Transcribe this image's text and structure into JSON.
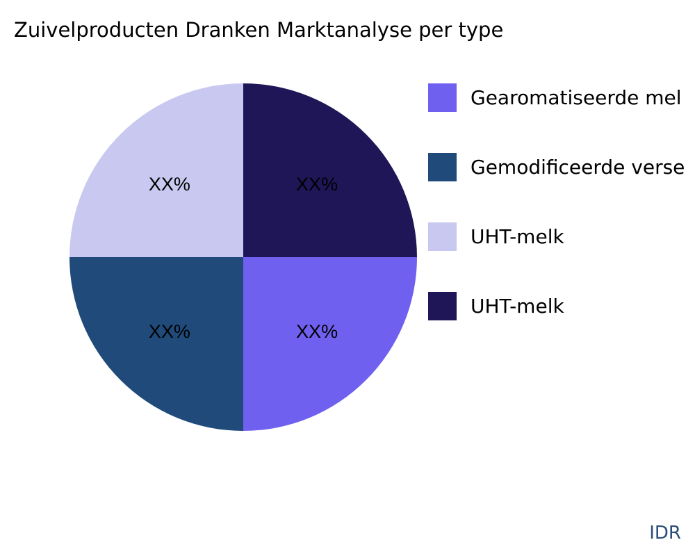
{
  "chart_data": {
    "type": "pie",
    "title": "Zuivelproducten Dranken Marktanalyse per type",
    "slices": [
      {
        "label": "Gearomatiseerde mel",
        "value": 25,
        "text": "XX%",
        "color": "#7060f0"
      },
      {
        "label": "Gemodificeerde verse",
        "value": 25,
        "text": "XX%",
        "color": "#1f4a7a"
      },
      {
        "label": "UHT-melk",
        "value": 25,
        "text": "XX%",
        "color": "#c8c8f0"
      },
      {
        "label": "UHT-melk",
        "value": 25,
        "text": "XX%",
        "color": "#1e1656"
      }
    ],
    "direction": "clockwise",
    "legend_position": "right"
  },
  "brand": "IDR"
}
